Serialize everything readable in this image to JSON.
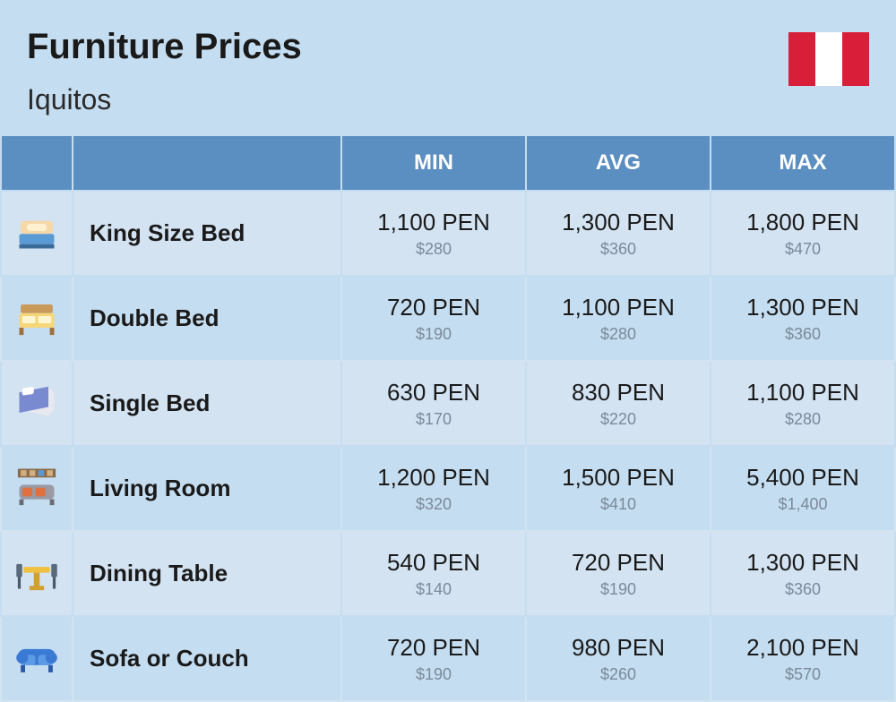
{
  "header": {
    "title": "Furniture Prices",
    "subtitle": "Iquitos"
  },
  "flag": {
    "country": "Peru",
    "stripes": [
      "#d91e3a",
      "#ffffff",
      "#d91e3a"
    ]
  },
  "table": {
    "columns": [
      "MIN",
      "AVG",
      "MAX"
    ],
    "header_bg": "#5b8ec1",
    "header_fg": "#ffffff",
    "row_bg_odd": "#d3e3f2",
    "row_bg_even": "#c5ddf0",
    "price_main_color": "#1a1a1a",
    "price_sub_color": "#7a8a9a",
    "rows": [
      {
        "icon": "king-bed-icon",
        "name": "King Size Bed",
        "min": {
          "pen": "1,100 PEN",
          "usd": "$280"
        },
        "avg": {
          "pen": "1,300 PEN",
          "usd": "$360"
        },
        "max": {
          "pen": "1,800 PEN",
          "usd": "$470"
        }
      },
      {
        "icon": "double-bed-icon",
        "name": "Double Bed",
        "min": {
          "pen": "720 PEN",
          "usd": "$190"
        },
        "avg": {
          "pen": "1,100 PEN",
          "usd": "$280"
        },
        "max": {
          "pen": "1,300 PEN",
          "usd": "$360"
        }
      },
      {
        "icon": "single-bed-icon",
        "name": "Single Bed",
        "min": {
          "pen": "630 PEN",
          "usd": "$170"
        },
        "avg": {
          "pen": "830 PEN",
          "usd": "$220"
        },
        "max": {
          "pen": "1,100 PEN",
          "usd": "$280"
        }
      },
      {
        "icon": "living-room-icon",
        "name": "Living Room",
        "min": {
          "pen": "1,200 PEN",
          "usd": "$320"
        },
        "avg": {
          "pen": "1,500 PEN",
          "usd": "$410"
        },
        "max": {
          "pen": "5,400 PEN",
          "usd": "$1,400"
        }
      },
      {
        "icon": "dining-table-icon",
        "name": "Dining Table",
        "min": {
          "pen": "540 PEN",
          "usd": "$140"
        },
        "avg": {
          "pen": "720 PEN",
          "usd": "$190"
        },
        "max": {
          "pen": "1,300 PEN",
          "usd": "$360"
        }
      },
      {
        "icon": "sofa-icon",
        "name": "Sofa or Couch",
        "min": {
          "pen": "720 PEN",
          "usd": "$190"
        },
        "avg": {
          "pen": "980 PEN",
          "usd": "$260"
        },
        "max": {
          "pen": "2,100 PEN",
          "usd": "$570"
        }
      }
    ]
  }
}
